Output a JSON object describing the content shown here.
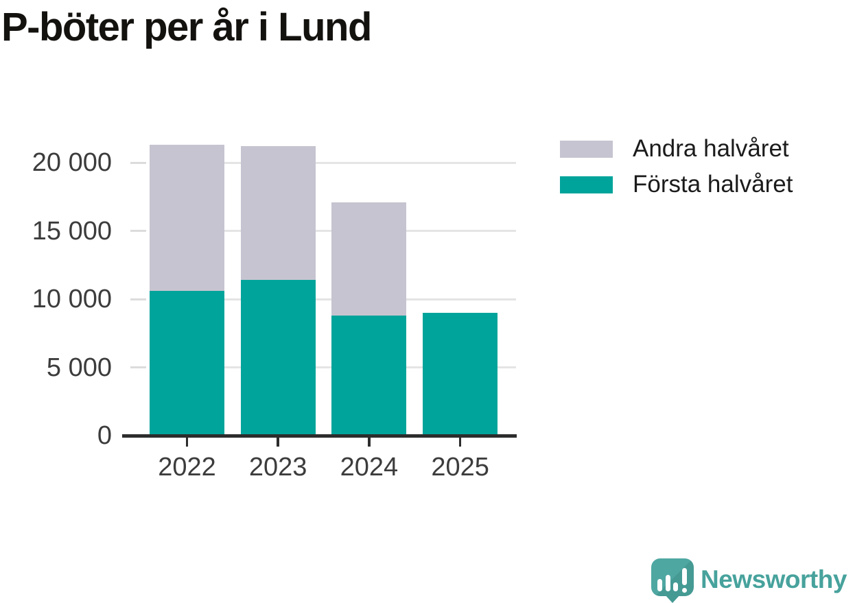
{
  "title": "P-böter per år i Lund",
  "chart_data": {
    "type": "bar",
    "stacked": true,
    "title": "P-böter per år i Lund",
    "categories": [
      "2022",
      "2023",
      "2024",
      "2025"
    ],
    "series": [
      {
        "name": "Första halvåret",
        "color": "#01a49b",
        "values": [
          10600,
          11400,
          8800,
          9000
        ]
      },
      {
        "name": "Andra halvåret",
        "color": "#c6c4d0",
        "values": [
          10700,
          9800,
          8300,
          0
        ]
      }
    ],
    "totals": [
      21300,
      21200,
      17100,
      9000
    ],
    "xlabel": "",
    "ylabel": "",
    "ylim": [
      0,
      22500
    ],
    "yticks": [
      {
        "value": 0,
        "label": "0"
      },
      {
        "value": 5000,
        "label": "5 000"
      },
      {
        "value": 10000,
        "label": "10 000"
      },
      {
        "value": 15000,
        "label": "15 000"
      },
      {
        "value": 20000,
        "label": "20 000"
      }
    ],
    "grid": "horizontal",
    "legend_position": "top-right"
  },
  "legend": {
    "items": [
      {
        "label": "Andra halvåret",
        "color": "#c6c4d0"
      },
      {
        "label": "Första halvåret",
        "color": "#01a49b"
      }
    ]
  },
  "branding": {
    "logo_text": "Newsworthy",
    "logo_color": "#47a29c",
    "icon": "newsworthy-speech-bubble-chart-icon"
  },
  "colors": {
    "first_half": "#01a49b",
    "second_half": "#c6c4d0",
    "axis": "#2d2d2d",
    "gridline": "#e4e4e4",
    "tick_label": "#3c3c3c",
    "title": "#14120f"
  }
}
